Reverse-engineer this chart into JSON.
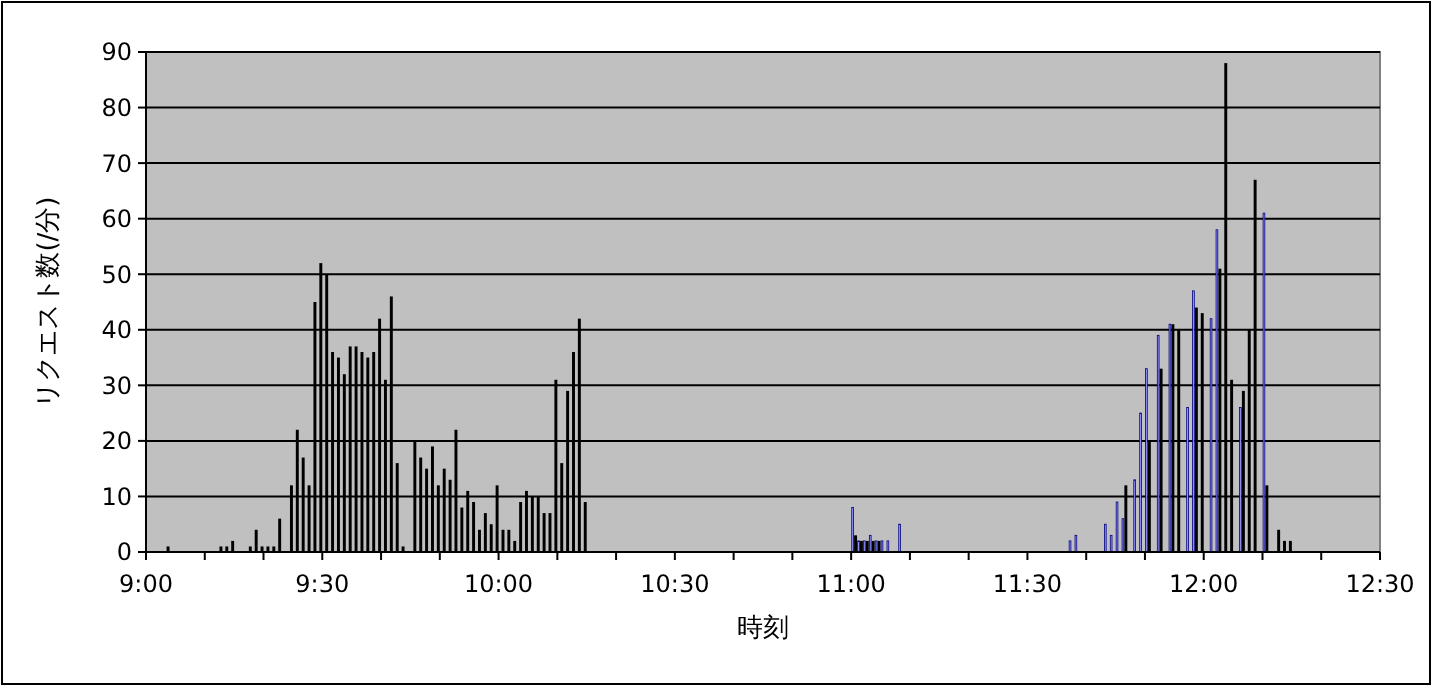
{
  "chart_data": {
    "type": "bar",
    "xlabel": "時刻",
    "ylabel": "リクエスト数(/分)",
    "series": [
      {
        "color": "#000000",
        "x": [
          9.0667,
          9.2167,
          9.2333,
          9.25,
          9.3,
          9.3167,
          9.3333,
          9.35,
          9.3667,
          9.3833,
          9.4167,
          9.4333,
          9.45,
          9.4667,
          9.4833,
          9.5,
          9.5167,
          9.5333,
          9.55,
          9.5667,
          9.5833,
          9.6,
          9.6167,
          9.6333,
          9.65,
          9.6667,
          9.6833,
          9.7,
          9.7167,
          9.7333,
          9.7667,
          9.7833,
          9.8,
          9.8167,
          9.8333,
          9.85,
          9.8667,
          9.8833,
          9.9,
          9.9167,
          9.9333,
          9.95,
          9.9667,
          9.9833,
          10,
          10.0167,
          10.0333,
          10.05,
          10.0667,
          10.0833,
          10.1,
          10.1167,
          10.1333,
          10.15,
          10.1667,
          10.1833,
          10.2,
          10.2167,
          10.2333,
          10.25,
          11.0167,
          11.0333,
          11.05,
          11.0667,
          11.0833,
          11.7833,
          11.85,
          11.8833,
          11.9167,
          11.9333,
          11.9833,
          12,
          12.05,
          12.0667,
          12.0833,
          12.1167,
          12.1333,
          12.15,
          12.1833,
          12.2167,
          12.2333,
          12.25
        ],
        "values": [
          1,
          1,
          1,
          2,
          1,
          4,
          1,
          1,
          1,
          6,
          12,
          22,
          17,
          12,
          45,
          52,
          50,
          36,
          35,
          32,
          37,
          37,
          36,
          35,
          36,
          42,
          31,
          46,
          16,
          1,
          20,
          17,
          15,
          19,
          12,
          15,
          13,
          22,
          8,
          11,
          9,
          4,
          7,
          5,
          12,
          4,
          4,
          2,
          9,
          11,
          10,
          10,
          7,
          7,
          31,
          16,
          29,
          36,
          42,
          9,
          3,
          2,
          2,
          2,
          2,
          12,
          20,
          33,
          41,
          40,
          44,
          43,
          51,
          88,
          31,
          29,
          40,
          67,
          12,
          4,
          2,
          2
        ]
      },
      {
        "color": "#9999ff",
        "x": [
          11,
          11.0167,
          11.0333,
          11.05,
          11.0667,
          11.0833,
          11.1,
          11.1333,
          11.6167,
          11.6333,
          11.7167,
          11.7333,
          11.75,
          11.7667,
          11.8,
          11.8167,
          11.8333,
          11.8667,
          11.9,
          11.95,
          11.9667,
          12.0167,
          12.0333,
          12.1,
          12.1667
        ],
        "values": [
          8,
          2,
          2,
          3,
          2,
          2,
          2,
          5,
          2,
          3,
          5,
          3,
          9,
          6,
          13,
          25,
          33,
          39,
          41,
          26,
          47,
          42,
          58,
          26,
          61
        ]
      }
    ],
    "xlim": [
      9,
      12.5
    ],
    "xticks": [
      {
        "value": 9,
        "label": "9:00"
      },
      {
        "value": 9.1667,
        "label": null
      },
      {
        "value": 9.3333,
        "label": null
      },
      {
        "value": 9.5,
        "label": "9:30"
      },
      {
        "value": 9.6667,
        "label": null
      },
      {
        "value": 9.8333,
        "label": null
      },
      {
        "value": 10,
        "label": "10:00"
      },
      {
        "value": 10.1667,
        "label": null
      },
      {
        "value": 10.3333,
        "label": null
      },
      {
        "value": 10.5,
        "label": "10:30"
      },
      {
        "value": 10.6667,
        "label": null
      },
      {
        "value": 10.8333,
        "label": null
      },
      {
        "value": 11,
        "label": "11:00"
      },
      {
        "value": 11.1667,
        "label": null
      },
      {
        "value": 11.3333,
        "label": null
      },
      {
        "value": 11.5,
        "label": "11:30"
      },
      {
        "value": 11.6667,
        "label": null
      },
      {
        "value": 11.8333,
        "label": null
      },
      {
        "value": 12,
        "label": "12:00"
      },
      {
        "value": 12.1667,
        "label": null
      },
      {
        "value": 12.3333,
        "label": null
      },
      {
        "value": 12.5,
        "label": "12:30"
      }
    ],
    "ylim": [
      0,
      90
    ],
    "yticks": [
      0,
      10,
      20,
      30,
      40,
      50,
      60,
      70,
      80,
      90
    ],
    "grid": "y"
  }
}
